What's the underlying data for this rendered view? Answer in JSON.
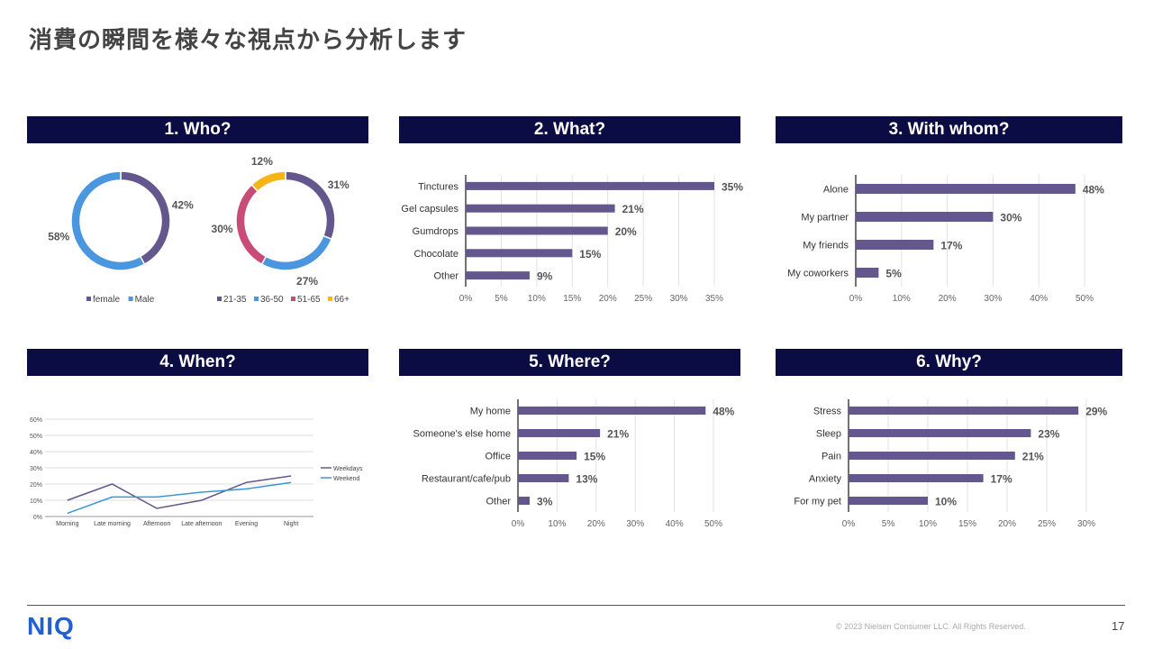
{
  "page_title": "消費の瞬間を様々な視点から分析します",
  "sections": {
    "who": "1. Who?",
    "what": "2. What?",
    "with_whom": "3. With whom?",
    "when": "4. When?",
    "where": "5. Where?",
    "why": "6. Why?"
  },
  "chart_data": [
    {
      "id": "who-gender",
      "type": "pie",
      "labels": [
        "female",
        "Male"
      ],
      "values": [
        42,
        58
      ],
      "value_labels": [
        "42%",
        "58%"
      ],
      "colors": [
        "#64578d",
        "#4a96df"
      ],
      "legend": "bottom"
    },
    {
      "id": "who-age",
      "type": "pie",
      "labels": [
        "21-35",
        "36-50",
        "51-65",
        "66+"
      ],
      "values": [
        31,
        27,
        30,
        12
      ],
      "value_labels": [
        "31%",
        "27%",
        "30%",
        "12%"
      ],
      "colors": [
        "#64578d",
        "#4a96df",
        "#c94c78",
        "#f6b417"
      ],
      "legend": "bottom"
    },
    {
      "id": "what",
      "type": "bar",
      "orientation": "horizontal",
      "categories": [
        "Tinctures",
        "Gel capsules",
        "Gumdrops",
        "Chocolate",
        "Other"
      ],
      "values": [
        35,
        21,
        20,
        15,
        9
      ],
      "value_labels": [
        "35%",
        "21%",
        "20%",
        "15%",
        "9%"
      ],
      "xticks": [
        "0%",
        "5%",
        "10%",
        "15%",
        "20%",
        "25%",
        "30%",
        "35%"
      ],
      "xlim": [
        0,
        35
      ],
      "color": "#64578d",
      "grid": true
    },
    {
      "id": "with-whom",
      "type": "bar",
      "orientation": "horizontal",
      "categories": [
        "Alone",
        "My partner",
        "My friends",
        "My coworkers"
      ],
      "values": [
        48,
        30,
        17,
        5
      ],
      "value_labels": [
        "48%",
        "30%",
        "17%",
        "5%"
      ],
      "xticks": [
        "0%",
        "10%",
        "20%",
        "30%",
        "40%",
        "50%"
      ],
      "xlim": [
        0,
        50
      ],
      "color": "#64578d",
      "grid": true
    },
    {
      "id": "when",
      "type": "line",
      "categories": [
        "Morning",
        "Late morning",
        "Afternoon",
        "Late afternoon",
        "Evening",
        "Night"
      ],
      "series": [
        {
          "name": "Weekdays",
          "values": [
            10,
            20,
            5,
            10,
            21,
            25
          ],
          "color": "#64578d"
        },
        {
          "name": "Weekend",
          "values": [
            2,
            12,
            12,
            15,
            17,
            21
          ],
          "color": "#3a97d4"
        }
      ],
      "yticks": [
        "0%",
        "10%",
        "20%",
        "30%",
        "40%",
        "50%",
        "60%"
      ],
      "ylim": [
        0,
        60
      ],
      "legend": "right",
      "grid": true
    },
    {
      "id": "where",
      "type": "bar",
      "orientation": "horizontal",
      "categories": [
        "My home",
        "Someone's else home",
        "Office",
        "Restaurant/cafe/pub",
        "Other"
      ],
      "values": [
        48,
        21,
        15,
        13,
        3
      ],
      "value_labels": [
        "48%",
        "21%",
        "15%",
        "13%",
        "3%"
      ],
      "xticks": [
        "0%",
        "10%",
        "20%",
        "30%",
        "40%",
        "50%"
      ],
      "xlim": [
        0,
        50
      ],
      "color": "#64578d",
      "grid": true
    },
    {
      "id": "why",
      "type": "bar",
      "orientation": "horizontal",
      "categories": [
        "Stress",
        "Sleep",
        "Pain",
        "Anxiety",
        "For my pet"
      ],
      "values": [
        29,
        23,
        21,
        17,
        10
      ],
      "value_labels": [
        "29%",
        "23%",
        "21%",
        "17%",
        "10%"
      ],
      "xticks": [
        "0%",
        "5%",
        "10%",
        "15%",
        "20%",
        "25%",
        "30%"
      ],
      "xlim": [
        0,
        30
      ],
      "color": "#64578d",
      "grid": true
    }
  ],
  "footer": {
    "logo": "NIQ",
    "copyright": "© 2023 Nielsen Consumer LLC. All Rights Reserved.",
    "page_number": "17"
  }
}
